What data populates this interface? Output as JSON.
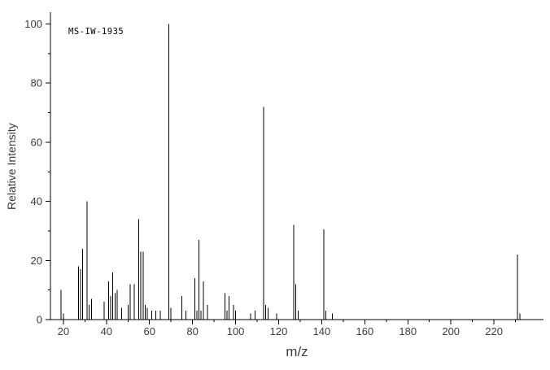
{
  "colors": {
    "background": "#ffffff",
    "axis": "#000000",
    "line": "#000000",
    "tick_label": "#3d3d3d",
    "annotation_color": "#000000"
  },
  "chart_data": {
    "type": "bar",
    "chart_kind": "mass-spectrum-stick-plot",
    "title": "",
    "annotation": "MS-IW-1935",
    "xlabel": "m/z",
    "ylabel": "Relative Intensity",
    "xlim": [
      14,
      243
    ],
    "ylim": [
      0,
      104
    ],
    "grid": false,
    "legend": false,
    "x_major_ticks": [
      20,
      40,
      60,
      80,
      100,
      120,
      140,
      160,
      180,
      200,
      220
    ],
    "x_minor_ticks": [
      30,
      50,
      70,
      90,
      110,
      130,
      150,
      170,
      190,
      210,
      230
    ],
    "y_major_ticks": [
      0,
      20,
      40,
      60,
      80,
      100
    ],
    "y_minor_ticks": [
      10,
      30,
      50,
      70,
      90
    ],
    "peaks": [
      [
        19,
        10
      ],
      [
        20,
        2
      ],
      [
        27,
        18
      ],
      [
        28,
        17
      ],
      [
        29,
        24
      ],
      [
        31,
        40
      ],
      [
        32,
        5
      ],
      [
        33,
        7
      ],
      [
        39,
        6
      ],
      [
        41,
        13
      ],
      [
        42,
        8
      ],
      [
        43,
        16
      ],
      [
        44,
        9
      ],
      [
        45,
        10
      ],
      [
        47,
        4
      ],
      [
        50,
        5
      ],
      [
        51,
        12
      ],
      [
        53,
        12
      ],
      [
        55,
        34
      ],
      [
        56,
        23
      ],
      [
        57,
        23
      ],
      [
        58,
        5
      ],
      [
        59,
        4
      ],
      [
        61,
        3
      ],
      [
        63,
        3
      ],
      [
        65,
        3
      ],
      [
        69,
        100
      ],
      [
        70,
        4
      ],
      [
        75,
        8
      ],
      [
        77,
        3
      ],
      [
        81,
        14
      ],
      [
        82,
        3
      ],
      [
        83,
        27
      ],
      [
        84,
        3
      ],
      [
        85,
        13
      ],
      [
        87,
        5
      ],
      [
        95,
        9
      ],
      [
        96,
        3
      ],
      [
        97,
        8
      ],
      [
        99,
        5
      ],
      [
        100,
        3
      ],
      [
        107,
        2
      ],
      [
        109,
        3
      ],
      [
        113,
        72
      ],
      [
        114,
        5
      ],
      [
        115,
        4
      ],
      [
        119,
        2
      ],
      [
        127,
        32
      ],
      [
        128,
        12
      ],
      [
        129,
        3
      ],
      [
        141,
        30.5
      ],
      [
        142,
        3
      ],
      [
        145,
        2
      ],
      [
        231,
        22
      ],
      [
        232,
        2
      ]
    ]
  }
}
